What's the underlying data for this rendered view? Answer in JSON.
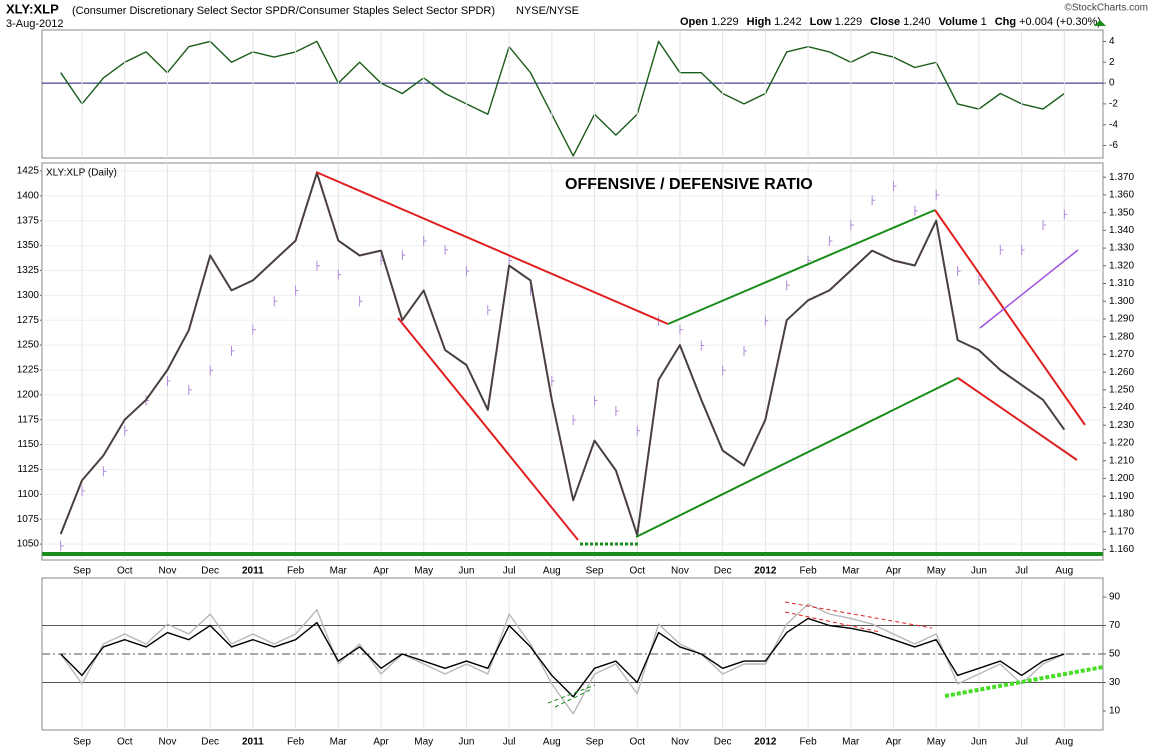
{
  "header": {
    "symbol": "XLY:XLP",
    "description": "(Consumer Discretionary Select Sector SPDR/Consumer Staples Select Sector SPDR)",
    "exchange": "NYSE/NYSE",
    "date": "3-Aug-2012",
    "quote": [
      {
        "label": "Open",
        "value": "1.229"
      },
      {
        "label": "High",
        "value": "1.242"
      },
      {
        "label": "Low",
        "value": "1.229"
      },
      {
        "label": "Close",
        "value": "1.240"
      },
      {
        "label": "Volume",
        "value": "1"
      },
      {
        "label": "Chg",
        "value": "+0.004 (+0.30%)"
      }
    ],
    "credit": "©StockCharts.com"
  },
  "chart_data": [
    {
      "type": "line",
      "ylim": [
        -7.2,
        5.1
      ],
      "yticks": [
        4,
        2,
        0,
        -2,
        -4,
        -6
      ],
      "zero_line": true,
      "grid": true,
      "series": [
        {
          "color": "#1a5c1a",
          "values": [
            1,
            -2,
            0.5,
            2,
            3,
            1,
            3.5,
            4,
            2,
            3,
            2.5,
            3,
            4,
            0,
            2,
            0,
            -1,
            0.5,
            -1,
            -2,
            -3,
            3.5,
            1,
            -3,
            -7,
            -3,
            -5,
            -3,
            4,
            1,
            1,
            -1,
            -2,
            -1,
            3,
            3.5,
            3,
            2,
            3,
            2.5,
            1.5,
            2,
            -2,
            -2.5,
            -1,
            -2,
            -2.5,
            -1
          ]
        }
      ]
    },
    {
      "type": "line",
      "legend_label": "XLY:XLP (Daily)",
      "annotation": "OFFENSIVE / DEFENSIVE RATIO",
      "grid": true,
      "categories": [
        null,
        "Sep",
        null,
        "Oct",
        null,
        "Nov",
        null,
        "Dec",
        null,
        "2011",
        null,
        "Feb",
        null,
        "Mar",
        null,
        "Apr",
        null,
        "May",
        null,
        "Jun",
        null,
        "Jul",
        null,
        "Aug",
        null,
        "Sep",
        null,
        "Oct",
        null,
        "Nov",
        null,
        "Dec",
        null,
        "2012",
        null,
        "Feb",
        null,
        "Mar",
        null,
        "Apr",
        null,
        "May",
        null,
        "Jun",
        null,
        "Jul",
        null,
        "Aug"
      ],
      "ylim": [
        1034,
        1433
      ],
      "yticks": [
        1050,
        1075,
        1100,
        1125,
        1150,
        1175,
        1200,
        1225,
        1250,
        1275,
        1300,
        1325,
        1350,
        1375,
        1400,
        1425
      ],
      "y2lim": [
        1.154,
        1.378
      ],
      "y2ticks": [
        {
          "value": 1.16,
          "label": "1.160"
        },
        {
          "value": 1.17,
          "label": "1.170"
        },
        {
          "value": 1.18,
          "label": "1.180"
        },
        {
          "value": 1.19,
          "label": "1.190"
        },
        {
          "value": 1.2,
          "label": "1.200"
        },
        {
          "value": 1.21,
          "label": "1.210"
        },
        {
          "value": 1.22,
          "label": "1.220"
        },
        {
          "value": 1.23,
          "label": "1.230"
        },
        {
          "value": 1.24,
          "label": "1.240"
        },
        {
          "value": 1.25,
          "label": "1.250"
        },
        {
          "value": 1.26,
          "label": "1.260"
        },
        {
          "value": 1.27,
          "label": "1.270"
        },
        {
          "value": 1.28,
          "label": "1.280"
        },
        {
          "value": 1.29,
          "label": "1.290"
        },
        {
          "value": 1.3,
          "label": "1.300"
        },
        {
          "value": 1.31,
          "label": "1.310"
        },
        {
          "value": 1.32,
          "label": "1.320"
        },
        {
          "value": 1.33,
          "label": "1.330"
        },
        {
          "value": 1.34,
          "label": "1.340"
        },
        {
          "value": 1.35,
          "label": "1.350"
        },
        {
          "value": 1.36,
          "label": "1.360"
        },
        {
          "value": 1.37,
          "label": "1.370"
        }
      ],
      "series": [
        {
          "color": "#b08ad8",
          "axis": "y2",
          "style": "bars",
          "values": [
            1.162,
            1.193,
            1.204,
            1.227,
            1.244,
            1.255,
            1.25,
            1.261,
            1.272,
            1.284,
            1.3,
            1.306,
            1.32,
            1.315,
            1.3,
            1.323,
            1.326,
            1.334,
            1.329,
            1.317,
            1.295,
            1.323,
            1.306,
            1.255,
            1.233,
            1.244,
            1.238,
            1.227,
            1.289,
            1.284,
            1.275,
            1.261,
            1.272,
            1.289,
            1.309,
            1.323,
            1.334,
            1.343,
            1.357,
            1.365,
            1.351,
            1.36,
            1.317,
            1.312,
            1.329,
            1.329,
            1.343,
            1.349
          ]
        },
        {
          "color": "#4a3f3f",
          "values": [
            1060,
            1114,
            1139,
            1175,
            1195,
            1225,
            1265,
            1340,
            1305,
            1315,
            1335,
            1355,
            1423,
            1355,
            1340,
            1345,
            1275,
            1305,
            1245,
            1230,
            1185,
            1330,
            1315,
            1195,
            1094,
            1154,
            1124,
            1059,
            1215,
            1250,
            1195,
            1144,
            1129,
            1175,
            1275,
            1295,
            1305,
            1325,
            1345,
            1335,
            1330,
            1375,
            1255,
            1245,
            1225,
            1210,
            1195,
            1165
          ]
        }
      ]
    },
    {
      "type": "line",
      "grid": true,
      "categories": [
        null,
        "Sep",
        null,
        "Oct",
        null,
        "Nov",
        null,
        "Dec",
        null,
        "2011",
        null,
        "Feb",
        null,
        "Mar",
        null,
        "Apr",
        null,
        "May",
        null,
        "Jun",
        null,
        "Jul",
        null,
        "Aug",
        null,
        "Sep",
        null,
        "Oct",
        null,
        "Nov",
        null,
        "Dec",
        null,
        "2012",
        null,
        "Feb",
        null,
        "Mar",
        null,
        "Apr",
        null,
        "May",
        null,
        "Jun",
        null,
        "Jul",
        null,
        "Aug"
      ],
      "ylim": [
        -3.3,
        103.3
      ],
      "yticks": [
        90,
        70,
        50,
        30,
        10
      ],
      "hlines": [
        70,
        50,
        30
      ],
      "series": [
        {
          "color": "#b8b8b8",
          "values": [
            50,
            29,
            57,
            64,
            57,
            71,
            64,
            78,
            57,
            64,
            57,
            64,
            81,
            43,
            57,
            36,
            50,
            43,
            36,
            43,
            36,
            78,
            57,
            29,
            8,
            36,
            43,
            22,
            71,
            57,
            50,
            36,
            43,
            43,
            71,
            85,
            78,
            75,
            71,
            64,
            57,
            64,
            29,
            36,
            43,
            29,
            43,
            50
          ]
        },
        {
          "color": "#000000",
          "values": [
            50,
            35,
            55,
            60,
            55,
            65,
            60,
            70,
            55,
            60,
            55,
            60,
            72,
            45,
            55,
            40,
            50,
            45,
            40,
            45,
            40,
            70,
            55,
            35,
            20,
            40,
            45,
            30,
            65,
            55,
            50,
            40,
            45,
            45,
            65,
            75,
            70,
            68,
            65,
            60,
            55,
            60,
            35,
            40,
            45,
            35,
            45,
            50
          ]
        }
      ]
    }
  ]
}
